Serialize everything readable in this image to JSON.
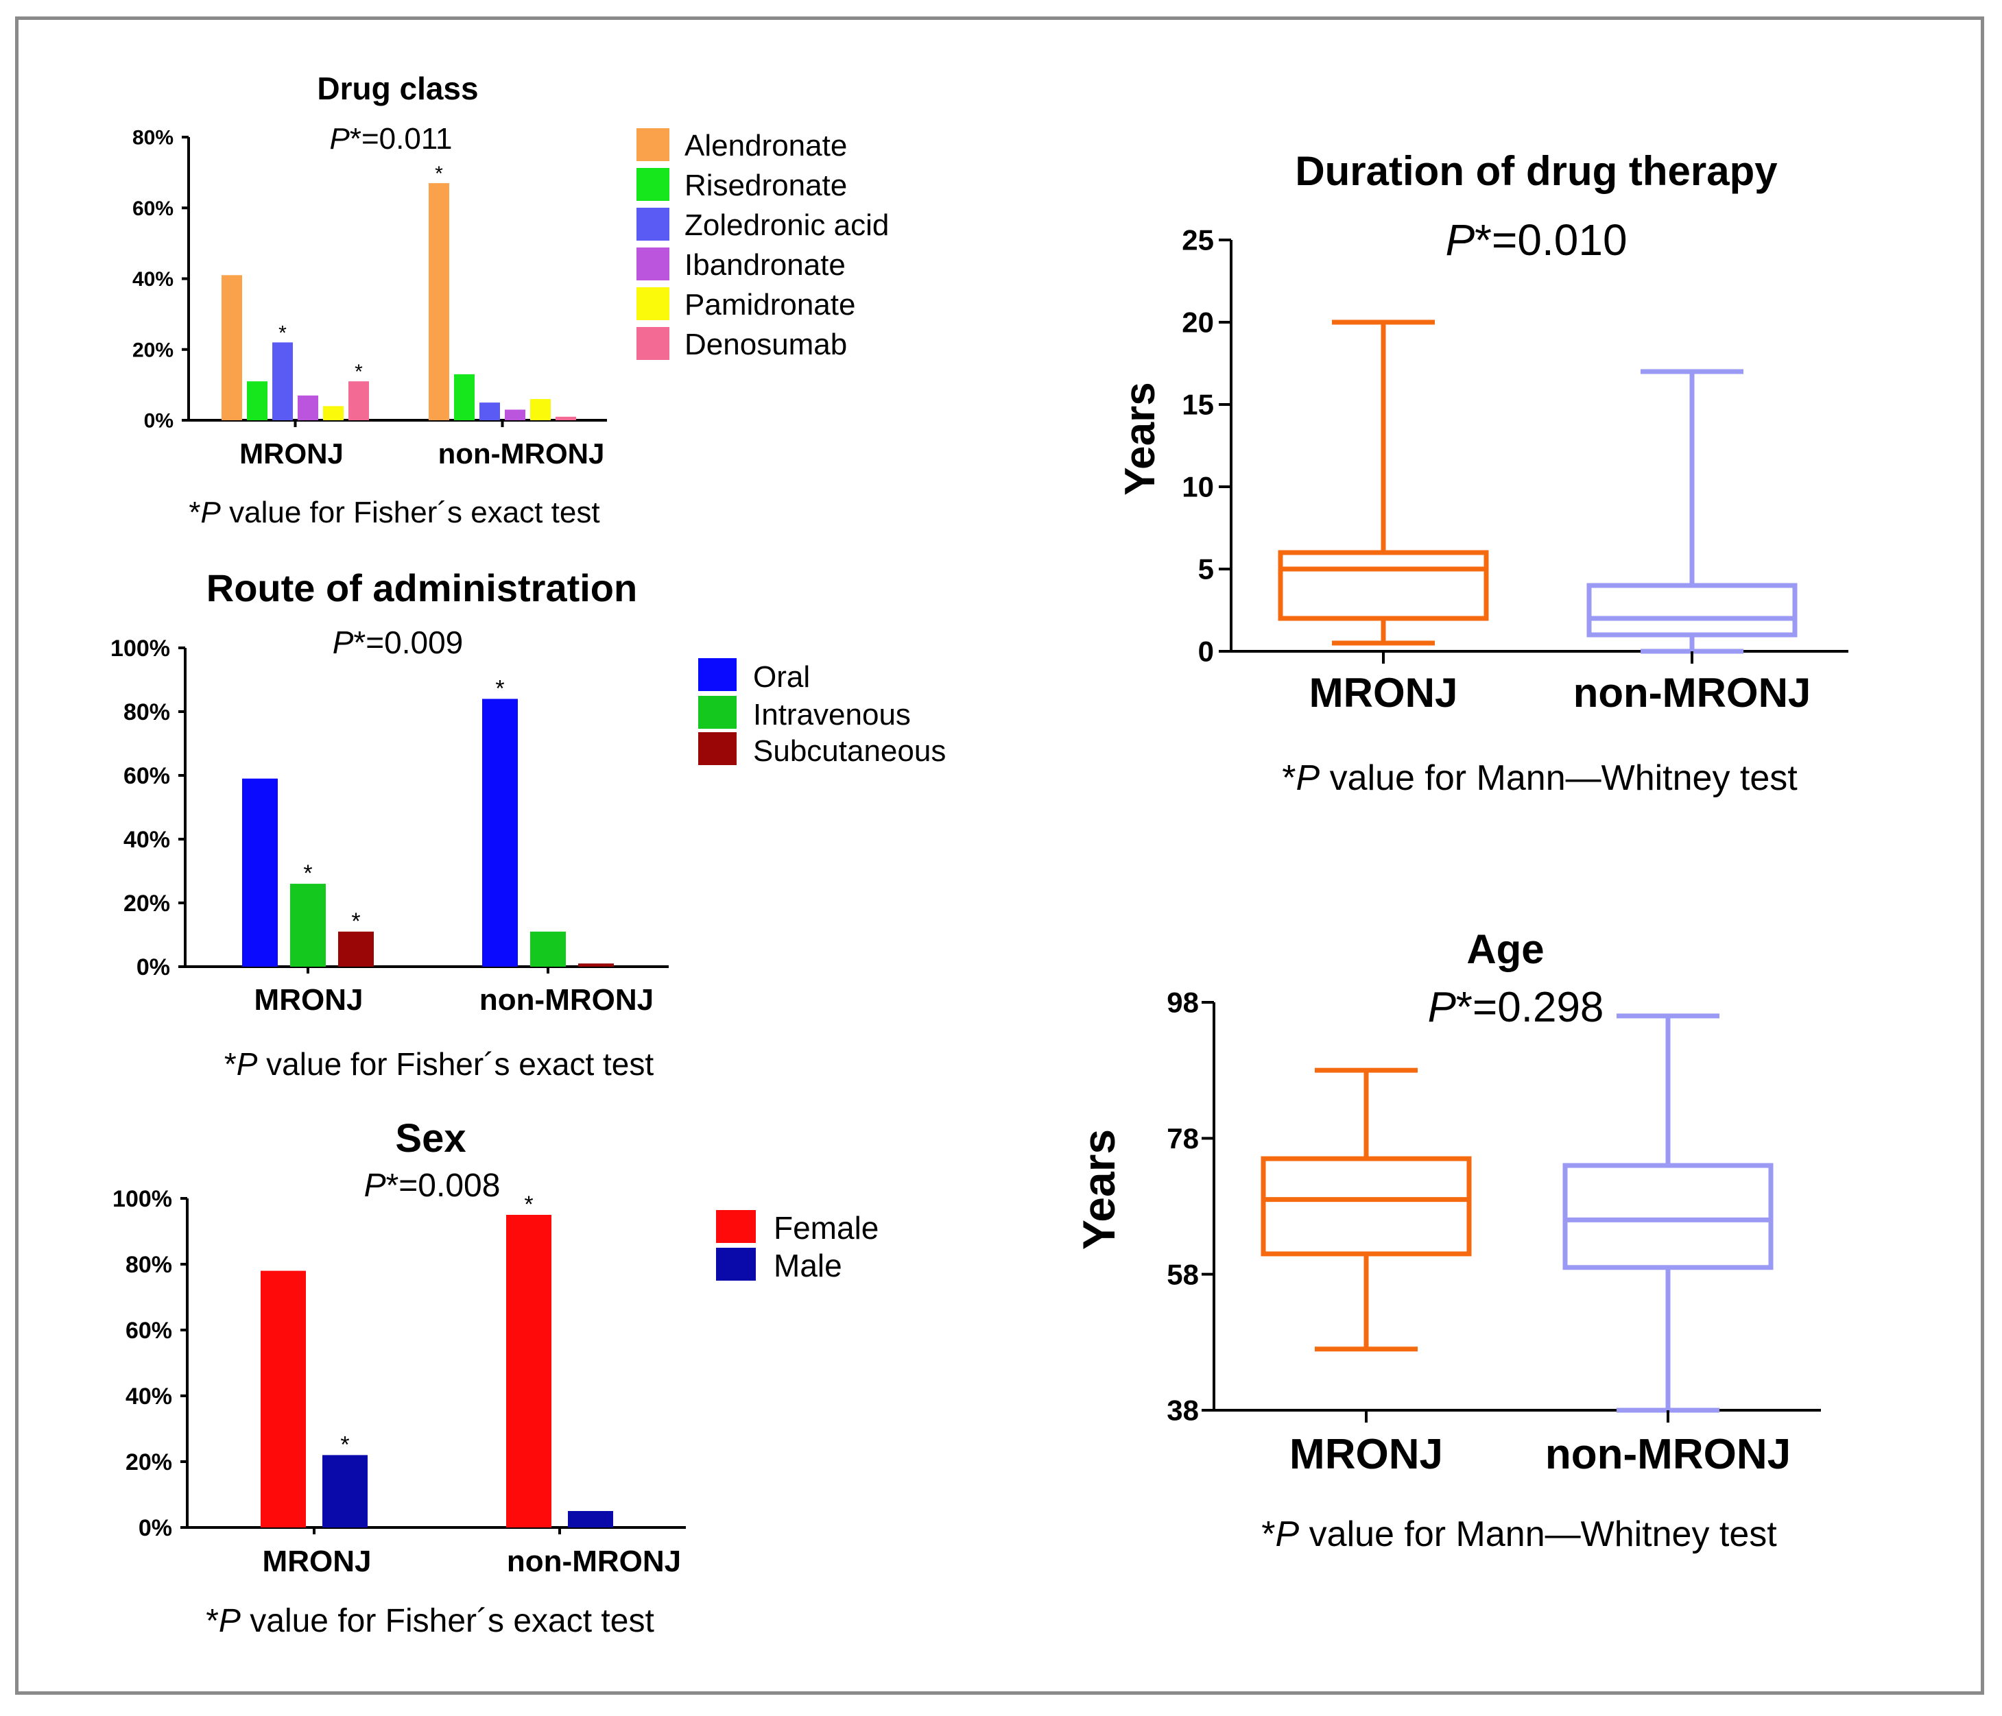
{
  "chart_data": [
    {
      "id": "drug",
      "type": "bar",
      "title": "Drug class",
      "p_label": "P",
      "p_rest": "*=0.011",
      "footnote_star": "*",
      "footnote_p": "P",
      "footnote_rest": " value for Fisher´s exact test",
      "categories": [
        "MRONJ",
        "non-MRONJ"
      ],
      "ylim": [
        0,
        80
      ],
      "yticks": [
        "0%",
        "20%",
        "40%",
        "60%",
        "80%"
      ],
      "series": [
        {
          "name": "Alendronate",
          "color": "#f9a24b",
          "values": [
            41,
            67
          ],
          "stars": [
            "",
            "*"
          ]
        },
        {
          "name": "Risedronate",
          "color": "#16e61c",
          "values": [
            11,
            13
          ],
          "stars": [
            "",
            ""
          ]
        },
        {
          "name": "Zoledronic acid",
          "color": "#5a5af5",
          "values": [
            22,
            5
          ],
          "stars": [
            "*",
            ""
          ]
        },
        {
          "name": "Ibandronate",
          "color": "#bb55dd",
          "values": [
            7,
            3
          ],
          "stars": [
            "",
            ""
          ]
        },
        {
          "name": "Pamidronate",
          "color": "#fafa0a",
          "values": [
            4,
            6
          ],
          "stars": [
            "",
            ""
          ]
        },
        {
          "name": "Denosumab",
          "color": "#f36a95",
          "values": [
            11,
            1
          ],
          "stars": [
            "*",
            ""
          ]
        }
      ]
    },
    {
      "id": "route",
      "type": "bar",
      "title": "Route of administration",
      "p_label": "P",
      "p_rest": "*=0.009",
      "footnote_star": "*",
      "footnote_p": "P",
      "footnote_rest": " value for Fisher´s exact test",
      "categories": [
        "MRONJ",
        "non-MRONJ"
      ],
      "ylim": [
        0,
        100
      ],
      "yticks": [
        "0%",
        "20%",
        "40%",
        "60%",
        "80%",
        "100%"
      ],
      "series": [
        {
          "name": "Oral",
          "color": "#0a0aff",
          "values": [
            59,
            84
          ],
          "stars": [
            "",
            "*"
          ]
        },
        {
          "name": "Intravenous",
          "color": "#14c81e",
          "values": [
            26,
            11
          ],
          "stars": [
            "*",
            ""
          ]
        },
        {
          "name": "Subcutaneous",
          "color": "#9a0606",
          "values": [
            11,
            1
          ],
          "stars": [
            "*",
            ""
          ]
        }
      ]
    },
    {
      "id": "sex",
      "type": "bar",
      "title": "Sex",
      "p_label": "P",
      "p_rest": "*=0.008",
      "footnote_star": "*",
      "footnote_p": "P",
      "footnote_rest": " value for Fisher´s exact test",
      "categories": [
        "MRONJ",
        "non-MRONJ"
      ],
      "ylim": [
        0,
        100
      ],
      "yticks": [
        "0%",
        "20%",
        "40%",
        "60%",
        "80%",
        "100%"
      ],
      "series": [
        {
          "name": "Female",
          "color": "#ff0a0a",
          "values": [
            78,
            95
          ],
          "stars": [
            "",
            "*"
          ]
        },
        {
          "name": "Male",
          "color": "#0a0aaa",
          "values": [
            22,
            5
          ],
          "stars": [
            "*",
            ""
          ]
        }
      ]
    },
    {
      "id": "duration",
      "type": "box",
      "title": "Duration of drug therapy",
      "p_label": "P",
      "p_rest": "*=0.010",
      "ylabel": "Years",
      "footnote_star": "*",
      "footnote_p": "P",
      "footnote_rest": " value for Mann—Whitney test",
      "categories": [
        "MRONJ",
        "non-MRONJ"
      ],
      "ylim": [
        0,
        25
      ],
      "yticks": [
        "0",
        "5",
        "10",
        "15",
        "20",
        "25"
      ],
      "boxes": [
        {
          "name": "MRONJ",
          "color": "#f5690f",
          "min": 0.5,
          "q1": 2,
          "median": 5,
          "q3": 6,
          "max": 20
        },
        {
          "name": "non-MRONJ",
          "color": "#9a9af5",
          "min": 0,
          "q1": 1,
          "median": 2,
          "q3": 4,
          "max": 17
        }
      ]
    },
    {
      "id": "age",
      "type": "box",
      "title": "Age",
      "p_label": "P",
      "p_rest": "*=0.298",
      "ylabel": "Years",
      "footnote_star": "*",
      "footnote_p": "P",
      "footnote_rest": " value for Mann—Whitney test",
      "categories": [
        "MRONJ",
        "non-MRONJ"
      ],
      "ylim": [
        38,
        98
      ],
      "yticks": [
        "38",
        "58",
        "78",
        "98"
      ],
      "boxes": [
        {
          "name": "MRONJ",
          "color": "#f5690f",
          "min": 47,
          "q1": 61,
          "median": 69,
          "q3": 75,
          "max": 88
        },
        {
          "name": "non-MRONJ",
          "color": "#9a9af5",
          "min": 38,
          "q1": 59,
          "median": 66,
          "q3": 74,
          "max": 96
        }
      ]
    }
  ]
}
